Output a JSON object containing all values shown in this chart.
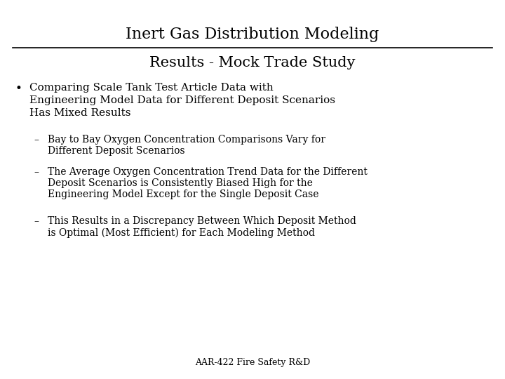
{
  "title": "Inert Gas Distribution Modeling",
  "subtitle": "Results - Mock Trade Study",
  "bullet_main_line1": "Comparing Scale Tank Test Article Data with",
  "bullet_main_line2": "Engineering Model Data for Different Deposit Scenarios",
  "bullet_main_line3": "Has Mixed Results",
  "sub_bullets": [
    "Bay to Bay Oxygen Concentration Comparisons Vary for\nDifferent Deposit Scenarios",
    "The Average Oxygen Concentration Trend Data for the Different\nDeposit Scenarios is Consistently Biased High for the\nEngineering Model Except for the Single Deposit Case",
    "This Results in a Discrepancy Between Which Deposit Method\nis Optimal (Most Efficient) for Each Modeling Method"
  ],
  "footer": "AAR-422 Fire Safety R&D",
  "background_color": "#ffffff",
  "text_color": "#000000",
  "title_fontsize": 16,
  "subtitle_fontsize": 15,
  "bullet_fontsize": 11,
  "sub_bullet_fontsize": 10,
  "footer_fontsize": 9
}
